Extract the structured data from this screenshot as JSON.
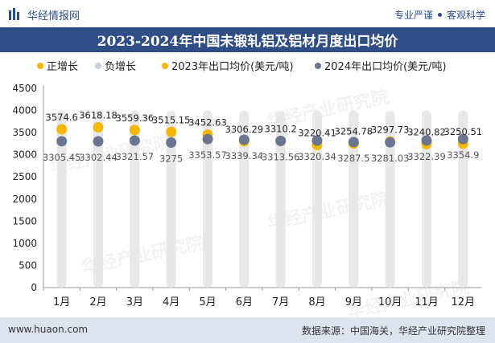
{
  "header": {
    "brand": "华经情报网",
    "tag1": "专业严谨",
    "tag2": "客观科学"
  },
  "footer": {
    "website": "www.huaon.com",
    "source": "数据来源：中国海关，华经产业研究院整理"
  },
  "watermark": "华经产业研究院",
  "colors": {
    "title_bg": "#2f4e86",
    "series_2023": "#f5b800",
    "series_2024": "#6a7590",
    "bar_pos": "#e8e8e8",
    "footer_bg": "#dde4ef"
  },
  "chart_data": {
    "type": "line",
    "title": "2023-2024年中国未锻轧铝及铝材月度出口均价",
    "categories": [
      "1月",
      "2月",
      "3月",
      "4月",
      "5月",
      "6月",
      "7月",
      "8月",
      "9月",
      "10月",
      "11月",
      "12月"
    ],
    "ylim": [
      0,
      4500
    ],
    "yticks": [
      "0",
      "500",
      "1000",
      "1500",
      "2000",
      "2500",
      "3000",
      "3500",
      "4000",
      "4500"
    ],
    "legend": [
      "正增长",
      "负增长",
      "2023年出口均价(美元/吨)",
      "2024年出口均价(美元/吨)"
    ],
    "legend_position": "top",
    "series": [
      {
        "name": "2023年出口均价(美元/吨)",
        "values": [
          3574.6,
          3618.18,
          3559.36,
          3515.15,
          3452.63,
          3306.29,
          3310.2,
          3220.41,
          3254.78,
          3297.73,
          3240.82,
          3250.51
        ],
        "labels": [
          "3574.6",
          "3618.18",
          "3559.36",
          "3515.15",
          "3452.63",
          "3306.29",
          "3310.2",
          "3220.41",
          "3254.78",
          "3297.73",
          "3240.82",
          "3250.51"
        ]
      },
      {
        "name": "2024年出口均价(美元/吨)",
        "values": [
          3305.45,
          3302.44,
          3321.57,
          3275,
          3353.57,
          3339.34,
          3313.56,
          3320.34,
          3287.5,
          3281.03,
          3322.39,
          3354.9
        ],
        "labels": [
          "3305.45",
          "3302.44",
          "3321.57",
          "3275",
          "3353.57",
          "3339.34",
          "3313.56",
          "3320.34",
          "3287.5",
          "3281.03",
          "3322.39",
          "3354.9"
        ]
      }
    ]
  }
}
